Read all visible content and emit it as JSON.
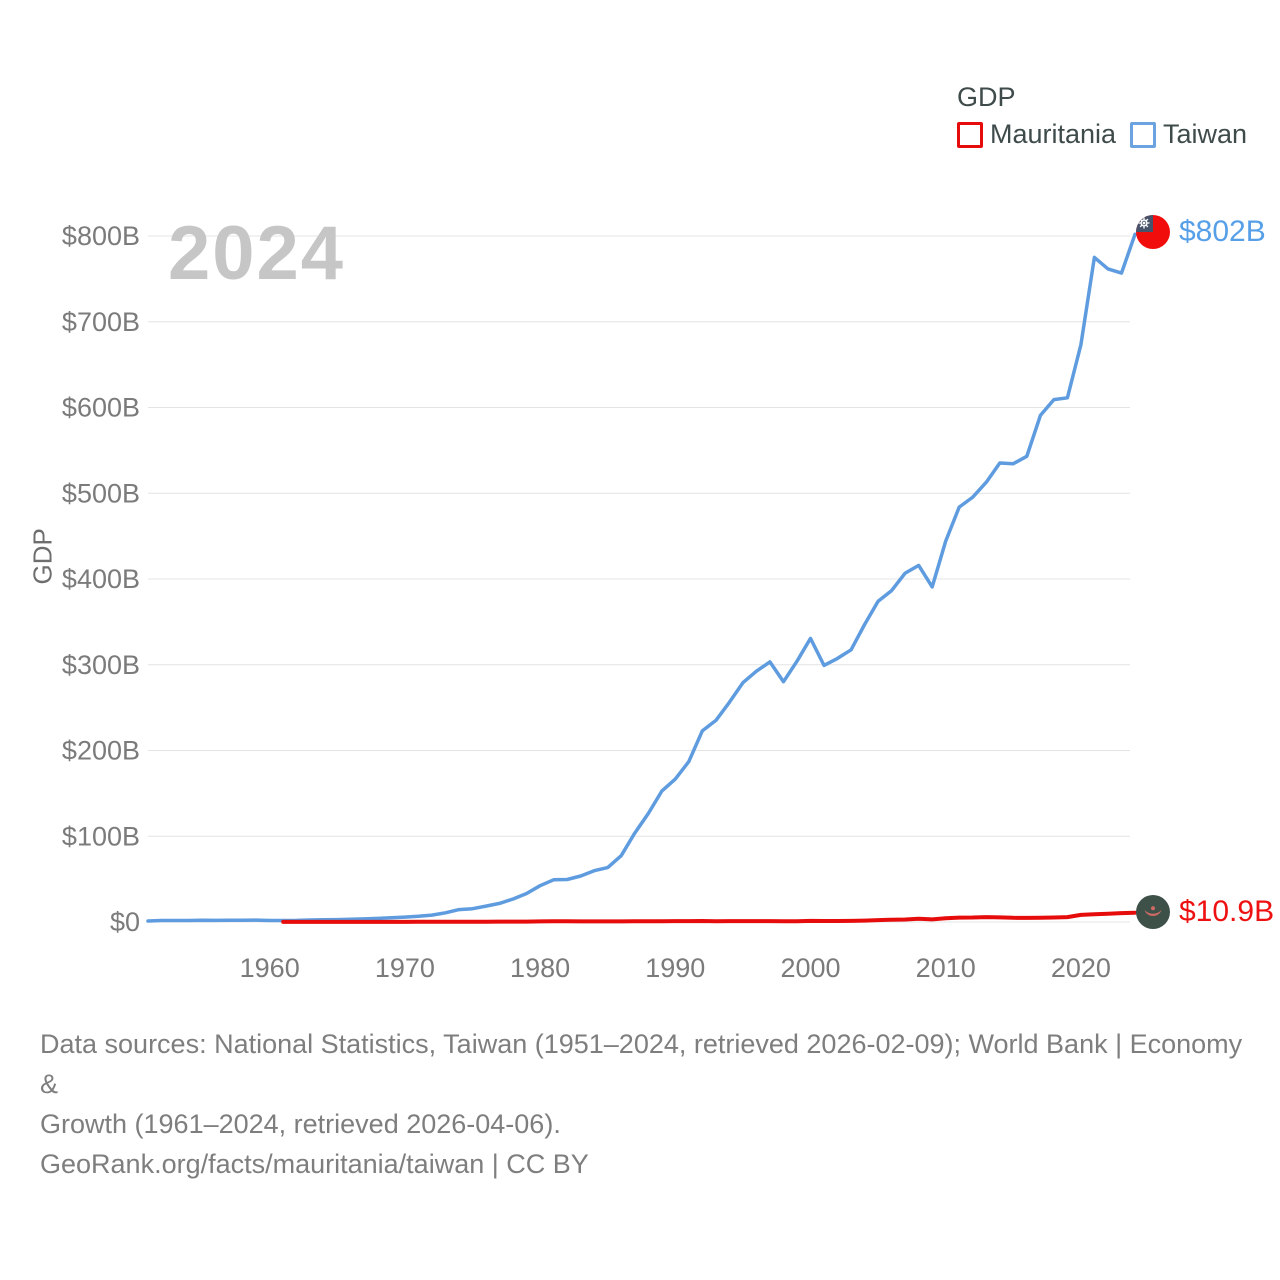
{
  "watermark": "2024",
  "y_axis_label": "GDP",
  "legend": {
    "title": "GDP",
    "items": [
      {
        "label": "Mauritania",
        "color": "#e60c0c"
      },
      {
        "label": "Taiwan",
        "color": "#5b9de2"
      }
    ]
  },
  "end_labels": {
    "taiwan": {
      "text": "$802B",
      "flag": "taiwan-flag"
    },
    "mauritania": {
      "text": "$10.9B",
      "flag": "mauritania-flag"
    }
  },
  "footer": {
    "lines": [
      "Data sources: National Statistics, Taiwan (1951–2024, retrieved 2026-02-09); World Bank | Economy &",
      "Growth (1961–2024, retrieved 2026-04-06).",
      "GeoRank.org/facts/mauritania/taiwan | CC BY"
    ]
  },
  "chart_data": {
    "type": "line",
    "title": "GDP",
    "xlabel": "",
    "ylabel": "GDP",
    "xlim": [
      1951,
      2024
    ],
    "ylim": [
      0,
      800
    ],
    "grid": true,
    "legend_position": "top-right",
    "x_ticks": [
      1960,
      1970,
      1980,
      1990,
      2000,
      2010,
      2020
    ],
    "y_ticks": [
      {
        "value": 0,
        "label": "$0"
      },
      {
        "value": 100,
        "label": "$100B"
      },
      {
        "value": 200,
        "label": "$200B"
      },
      {
        "value": 300,
        "label": "$300B"
      },
      {
        "value": 400,
        "label": "$400B"
      },
      {
        "value": 500,
        "label": "$500B"
      },
      {
        "value": 600,
        "label": "$600B"
      },
      {
        "value": 700,
        "label": "$700B"
      },
      {
        "value": 800,
        "label": "$800B"
      }
    ],
    "series": [
      {
        "name": "Taiwan",
        "color": "#5e9cdf",
        "stroke_width": 3.5,
        "start_year": 1951,
        "end_value_label": "$802B",
        "values": [
          1.2,
          1.7,
          1.7,
          1.8,
          2.0,
          1.9,
          2.1,
          2.1,
          2.2,
          1.7,
          1.8,
          1.9,
          2.3,
          2.6,
          2.8,
          3.2,
          3.6,
          4.2,
          4.9,
          5.7,
          6.6,
          8.0,
          10.7,
          14.5,
          15.5,
          18.5,
          21.7,
          26.8,
          33.2,
          42.3,
          49.2,
          49.6,
          53.6,
          59.8,
          63.4,
          77.3,
          103.6,
          126.5,
          152.7,
          166.6,
          187.1,
          222.9,
          235.1,
          256.2,
          279.1,
          292.5,
          303.3,
          280.2,
          304.1,
          330.7,
          299.3,
          307.4,
          317.4,
          346.9,
          374.1,
          386.5,
          406.9,
          415.9,
          390.8,
          444.2,
          483.9,
          495.5,
          512.9,
          535.3,
          534.5,
          543.1,
          590.8,
          609.2,
          611.3,
          673.2,
          775.0,
          761.6,
          756.7,
          802.0
        ]
      },
      {
        "name": "Mauritania",
        "color": "#e60c0c",
        "stroke_width": 4,
        "start_year": 1961,
        "end_value_label": "$10.9B",
        "values": [
          0.09,
          0.1,
          0.11,
          0.12,
          0.13,
          0.14,
          0.15,
          0.16,
          0.16,
          0.17,
          0.18,
          0.19,
          0.21,
          0.27,
          0.33,
          0.4,
          0.43,
          0.44,
          0.49,
          0.71,
          0.78,
          0.76,
          0.74,
          0.71,
          0.68,
          0.74,
          0.84,
          0.89,
          0.97,
          1.02,
          1.1,
          1.17,
          0.96,
          1.06,
          1.07,
          1.09,
          1.04,
          0.99,
          0.96,
          1.29,
          1.12,
          1.16,
          1.29,
          1.6,
          2.18,
          2.7,
          2.87,
          3.79,
          3.03,
          4.34,
          5.16,
          5.23,
          5.73,
          5.39,
          4.84,
          4.74,
          5.02,
          5.25,
          5.71,
          8.23,
          9.0,
          9.72,
          10.36,
          10.9
        ]
      }
    ]
  }
}
